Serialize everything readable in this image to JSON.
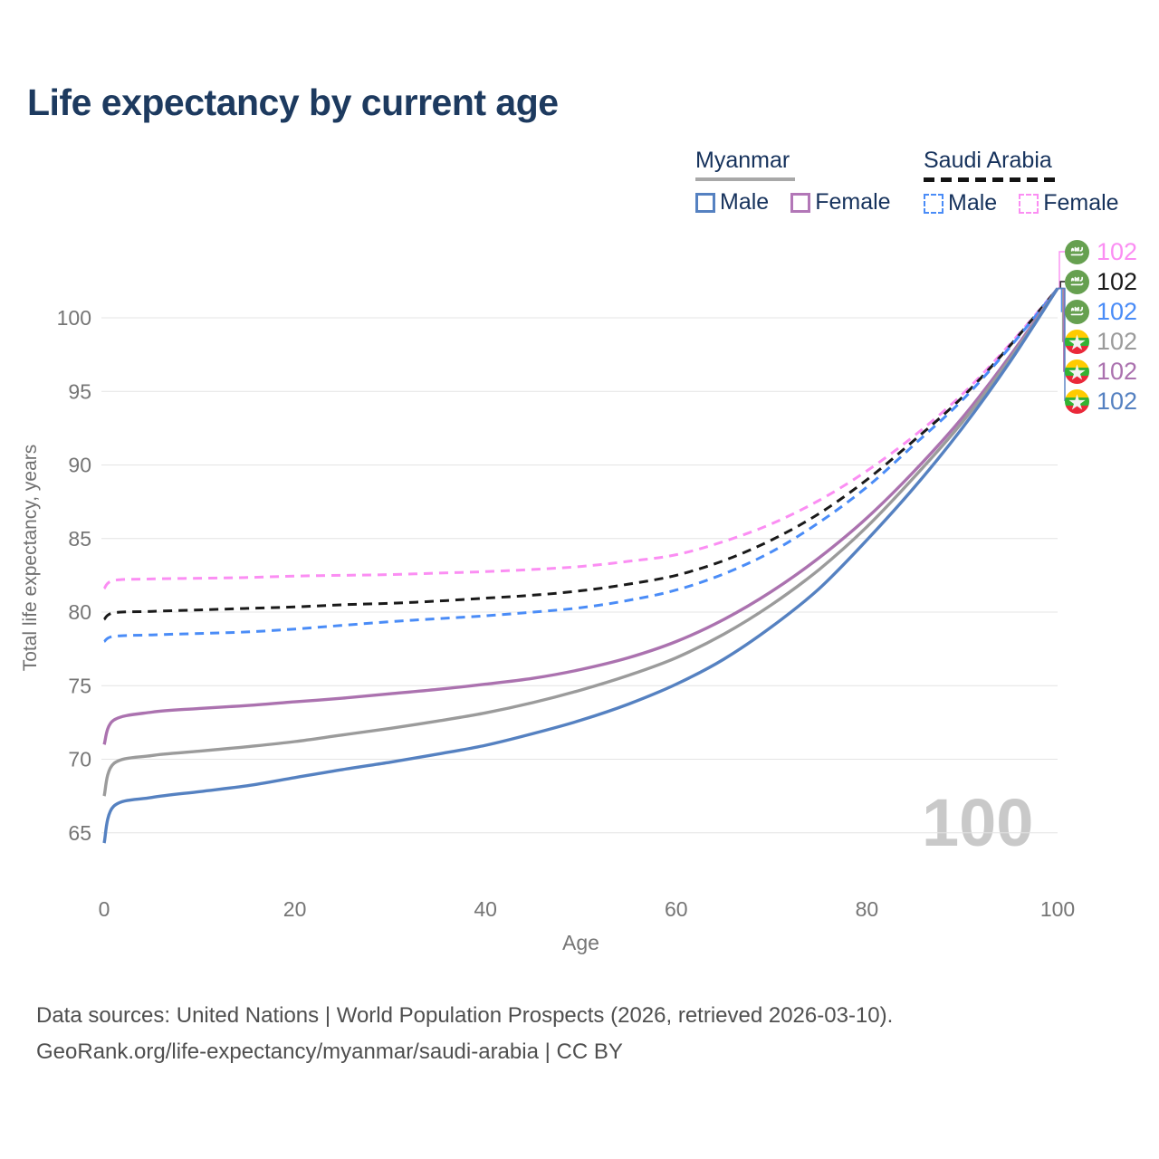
{
  "title": "Life expectancy by current age",
  "legend": {
    "groups": [
      {
        "country": "Myanmar",
        "line_style": "solid",
        "underline_color": "#a8a8a8",
        "items": [
          {
            "label": "Male",
            "color": "#5581c1",
            "dashed": false
          },
          {
            "label": "Female",
            "color": "#b277b7",
            "dashed": false
          }
        ]
      },
      {
        "country": "Saudi Arabia",
        "line_style": "dashed",
        "underline_color": "#141414",
        "items": [
          {
            "label": "Male",
            "color": "#4a8cf7",
            "dashed": true
          },
          {
            "label": "Female",
            "color": "#fb8ef3",
            "dashed": true
          }
        ]
      }
    ]
  },
  "watermark": "100",
  "axis": {
    "x_label": "Age",
    "y_label": "Total life expectancy, years"
  },
  "end_labels": [
    {
      "flag": "saudi-arabia",
      "value": "102",
      "color": "#fb8ef3"
    },
    {
      "flag": "saudi-arabia",
      "value": "102",
      "color": "#1a1a1a"
    },
    {
      "flag": "saudi-arabia",
      "value": "102",
      "color": "#4a8cf7"
    },
    {
      "flag": "myanmar",
      "value": "102",
      "color": "#9b9b9b"
    },
    {
      "flag": "myanmar",
      "value": "102",
      "color": "#ab72af"
    },
    {
      "flag": "myanmar",
      "value": "102",
      "color": "#5581c1"
    }
  ],
  "chart_data": {
    "type": "line",
    "title": "Life expectancy by current age",
    "xlabel": "Age",
    "ylabel": "Total life expectancy, years",
    "xlim": [
      0,
      100
    ],
    "ylim": [
      63.5,
      103
    ],
    "x_ticks": [
      0,
      20,
      40,
      60,
      80,
      100
    ],
    "y_ticks": [
      65,
      70,
      75,
      80,
      85,
      90,
      95,
      100
    ],
    "grid": "horizontal-only",
    "legend_position": "top-right",
    "x": [
      0,
      1,
      5,
      10,
      15,
      20,
      25,
      30,
      35,
      40,
      45,
      50,
      55,
      60,
      65,
      70,
      75,
      80,
      85,
      90,
      95,
      100
    ],
    "series": [
      {
        "name": "Saudi Arabia Female",
        "country": "Saudi Arabia",
        "sex": "Female",
        "color": "#fb8ef3",
        "dashed": true,
        "values": [
          81.6,
          82.15,
          82.25,
          82.3,
          82.35,
          82.45,
          82.5,
          82.55,
          82.65,
          82.75,
          82.9,
          83.1,
          83.45,
          83.9,
          84.8,
          86.0,
          87.6,
          89.6,
          92.0,
          94.8,
          98.2,
          102
        ]
      },
      {
        "name": "Saudi Arabia",
        "country": "Saudi Arabia",
        "sex": "Both",
        "color": "#1a1a1a",
        "dashed": true,
        "values": [
          79.5,
          79.95,
          80.05,
          80.15,
          80.25,
          80.35,
          80.5,
          80.6,
          80.75,
          80.95,
          81.15,
          81.45,
          81.9,
          82.5,
          83.5,
          84.9,
          86.7,
          89.0,
          91.7,
          94.6,
          98.1,
          102
        ]
      },
      {
        "name": "Saudi Arabia Male",
        "country": "Saudi Arabia",
        "sex": "Male",
        "color": "#4a8cf7",
        "dashed": true,
        "values": [
          78.0,
          78.35,
          78.45,
          78.55,
          78.65,
          78.85,
          79.1,
          79.35,
          79.55,
          79.75,
          80.0,
          80.3,
          80.8,
          81.5,
          82.6,
          84.1,
          86.1,
          88.5,
          91.4,
          94.4,
          98.0,
          102
        ]
      },
      {
        "name": "Myanmar Female",
        "country": "Myanmar",
        "sex": "Female",
        "color": "#ab72af",
        "dashed": false,
        "values": [
          71.0,
          72.65,
          73.2,
          73.45,
          73.65,
          73.9,
          74.15,
          74.45,
          74.75,
          75.1,
          75.5,
          76.1,
          76.9,
          78.0,
          79.5,
          81.4,
          83.7,
          86.4,
          89.6,
          93.2,
          97.4,
          102
        ]
      },
      {
        "name": "Myanmar",
        "country": "Myanmar",
        "sex": "Both",
        "color": "#9b9b9b",
        "dashed": false,
        "values": [
          67.5,
          69.7,
          70.25,
          70.55,
          70.85,
          71.2,
          71.65,
          72.1,
          72.6,
          73.15,
          73.85,
          74.7,
          75.7,
          76.9,
          78.5,
          80.5,
          82.9,
          85.8,
          89.2,
          92.9,
          97.2,
          102
        ]
      },
      {
        "name": "Myanmar Male",
        "country": "Myanmar",
        "sex": "Male",
        "color": "#5581c1",
        "dashed": false,
        "values": [
          64.3,
          66.8,
          67.4,
          67.8,
          68.2,
          68.75,
          69.3,
          69.8,
          70.35,
          70.95,
          71.75,
          72.65,
          73.75,
          75.1,
          76.8,
          79.0,
          81.6,
          84.9,
          88.5,
          92.5,
          97.0,
          102
        ]
      }
    ]
  },
  "footer": {
    "line1": "Data sources: United Nations | World Population Prospects (2026, retrieved 2026-03-10).",
    "line2": "GeoRank.org/life-expectancy/myanmar/saudi-arabia | CC BY"
  }
}
